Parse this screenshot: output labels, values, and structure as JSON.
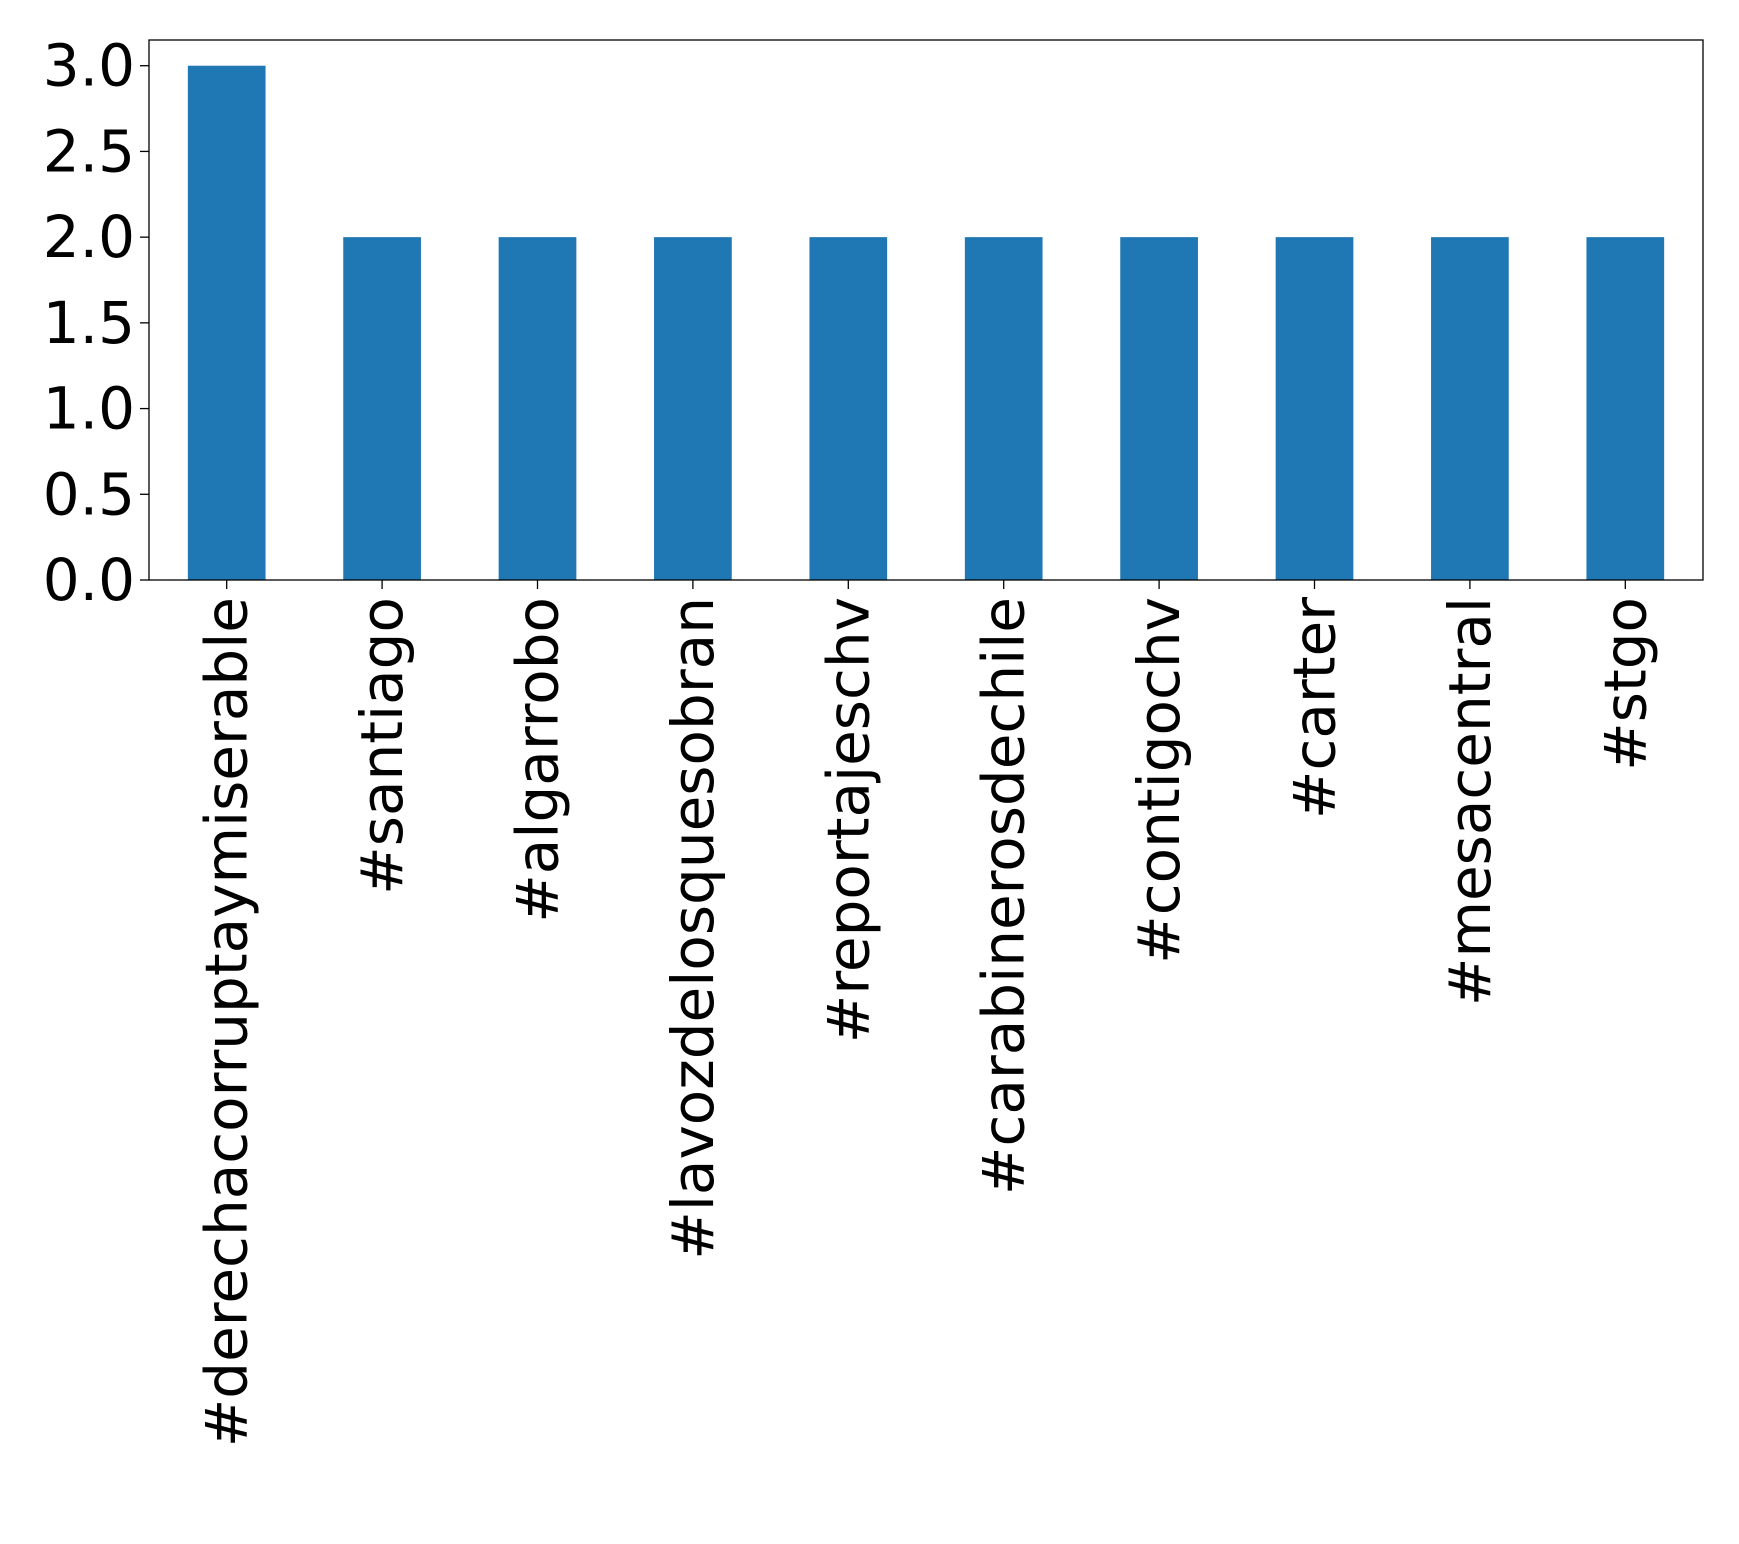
{
  "chart_data": {
    "type": "bar",
    "title": "",
    "xlabel": "",
    "ylabel": "",
    "categories": [
      "#derechacorruptaymiserable",
      "#santiago",
      "#algarrobo",
      "#lavozdelosquesobran",
      "#reportajeschv",
      "#carabinerosdechile",
      "#contigochv",
      "#carter",
      "#mesacentral",
      "#stgo"
    ],
    "values": [
      3,
      2,
      2,
      2,
      2,
      2,
      2,
      2,
      2,
      2
    ],
    "ylim": [
      0,
      3.15
    ],
    "yticks": [
      0.0,
      0.5,
      1.0,
      1.5,
      2.0,
      2.5,
      3.0
    ],
    "ytick_labels": [
      "0.0",
      "0.5",
      "1.0",
      "1.5",
      "2.0",
      "2.5",
      "3.0"
    ],
    "grid": false,
    "legend": "none",
    "bar_color": "#1f77b4"
  }
}
